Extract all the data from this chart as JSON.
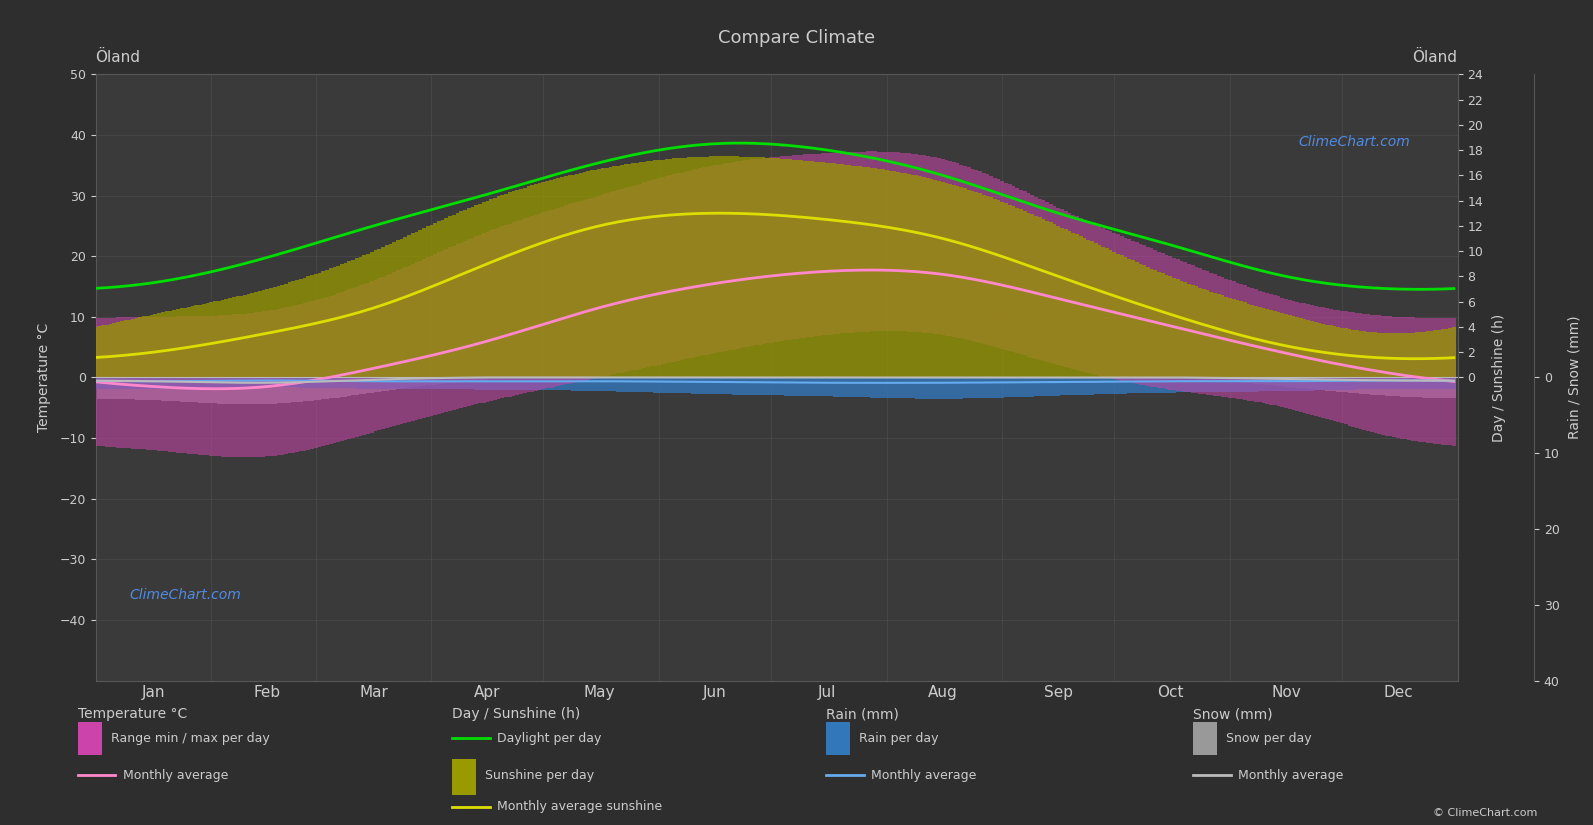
{
  "title": "Compare Climate",
  "location": "Öland",
  "bg_color": "#2e2e2e",
  "plot_bg_color": "#3a3a3a",
  "text_color": "#cccccc",
  "grid_color": "#565656",
  "months": [
    "Jan",
    "Feb",
    "Mar",
    "Apr",
    "May",
    "Jun",
    "Jul",
    "Aug",
    "Sep",
    "Oct",
    "Nov",
    "Dec"
  ],
  "month_positions": [
    15.5,
    46,
    74.5,
    105,
    135,
    166,
    196,
    227,
    258,
    288,
    319,
    349
  ],
  "month_edges": [
    0,
    31,
    59,
    90,
    120,
    151,
    181,
    212,
    243,
    273,
    304,
    334,
    365
  ],
  "temp_avg": [
    -1.5,
    -1.5,
    1.5,
    6.0,
    11.5,
    15.5,
    17.5,
    17.0,
    13.0,
    8.5,
    4.0,
    0.5
  ],
  "temp_max_day": [
    10,
    11,
    16,
    24,
    30,
    35,
    37,
    36,
    28,
    20,
    13,
    10
  ],
  "temp_min_day": [
    -12,
    -13,
    -9,
    -4,
    0,
    4,
    7,
    7,
    2,
    -2,
    -5,
    -10
  ],
  "daylight": [
    7.5,
    9.5,
    12.0,
    14.5,
    17.0,
    18.5,
    18.0,
    16.0,
    13.0,
    10.5,
    8.0,
    7.0
  ],
  "sunshine_avg": [
    2.0,
    3.5,
    5.5,
    9.0,
    12.0,
    13.0,
    12.5,
    11.0,
    8.0,
    5.0,
    2.5,
    1.5
  ],
  "sunshine_max_day": [
    5.0,
    7.0,
    10.0,
    14.0,
    16.5,
    17.5,
    17.0,
    15.5,
    12.0,
    8.0,
    5.0,
    3.5
  ],
  "rain_per_day_max": [
    1.5,
    1.3,
    1.5,
    1.6,
    1.8,
    2.2,
    2.5,
    2.8,
    2.4,
    2.0,
    1.8,
    1.5
  ],
  "rain_per_day_avg": [
    0.5,
    0.4,
    0.5,
    0.5,
    0.5,
    0.6,
    0.7,
    0.7,
    0.6,
    0.5,
    0.5,
    0.4
  ],
  "snow_per_day_max": [
    3.0,
    3.5,
    2.0,
    0.3,
    0.0,
    0.0,
    0.0,
    0.0,
    0.0,
    0.1,
    1.2,
    2.5
  ],
  "snow_per_day_avg": [
    0.5,
    0.7,
    0.3,
    0.0,
    0.0,
    0.0,
    0.0,
    0.0,
    0.0,
    0.0,
    0.2,
    0.4
  ],
  "temp_ylim": [
    -50,
    50
  ],
  "sunshine_ylim": [
    0,
    24
  ],
  "rain_ylim": [
    0,
    40
  ],
  "sunshine_scale": 2.0833,
  "rain_scale": 1.25,
  "color_daylight": "#00dd00",
  "color_sunshine_avg": "#dddd00",
  "color_sunshine_bar": "#999900",
  "color_temp_bar": "#cc44aa",
  "color_temp_avg": "#ff88cc",
  "color_rain_bar": "#3377bb",
  "color_rain_avg": "#66aaee",
  "color_snow_bar": "#999999",
  "color_snow_avg": "#bbbbbb",
  "color_zero_line": "#bbbbbb",
  "color_watermark": "#5599ff",
  "watermark_text": "ClimeChart.com",
  "copyright_text": "© ClimeChart.com"
}
